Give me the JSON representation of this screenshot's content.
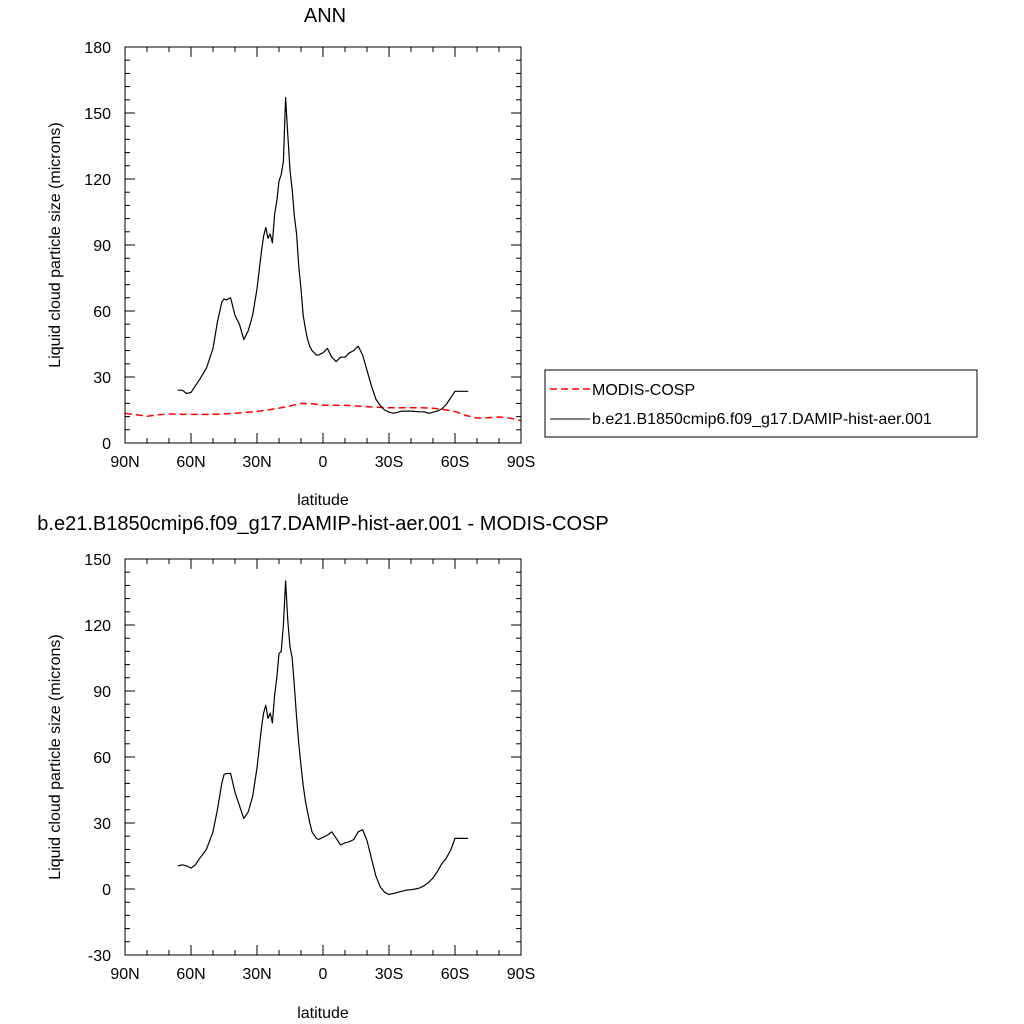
{
  "chart_data": [
    {
      "type": "line",
      "title": "ANN",
      "xlabel": "latitude",
      "ylabel": "Liquid cloud particle size (microns)",
      "xlim": [
        90,
        -90
      ],
      "ylim": [
        0,
        180
      ],
      "xticks": [
        {
          "value": 90,
          "label": "90N"
        },
        {
          "value": 60,
          "label": "60N"
        },
        {
          "value": 30,
          "label": "30N"
        },
        {
          "value": 0,
          "label": "0"
        },
        {
          "value": -30,
          "label": "30S"
        },
        {
          "value": -60,
          "label": "60S"
        },
        {
          "value": -90,
          "label": "90S"
        }
      ],
      "yticks": [
        0,
        30,
        60,
        90,
        120,
        150,
        180
      ],
      "grid": false,
      "legend": "right",
      "series": [
        {
          "name": "MODIS-COSP",
          "color": "#ff0000",
          "dash": true,
          "x": [
            90,
            85,
            80,
            75,
            70,
            60,
            50,
            40,
            30,
            20,
            15,
            10,
            5,
            0,
            -5,
            -10,
            -20,
            -30,
            -40,
            -45,
            -50,
            -55,
            -60,
            -65,
            -70,
            -75,
            -80,
            -85,
            -90
          ],
          "y": [
            13.5,
            12.8,
            12.2,
            12.8,
            13.2,
            13,
            13,
            13.5,
            14.3,
            15.8,
            16.8,
            18,
            17.8,
            17.2,
            17.2,
            17.2,
            16.5,
            16,
            16,
            16,
            15.8,
            15.2,
            14.3,
            12.5,
            11.3,
            11.5,
            11.8,
            11.3,
            10.2
          ]
        },
        {
          "name": "b.e21.B1850cmip6.f09_g17.DAMIP-hist-aer.001",
          "color": "#000000",
          "dash": false,
          "x": [
            66,
            64,
            62,
            60,
            58,
            56,
            53,
            50,
            48,
            46,
            45,
            44,
            42,
            40,
            38,
            36,
            34,
            32,
            30,
            28,
            27,
            26,
            25,
            24,
            23,
            22,
            21,
            20,
            19,
            18,
            17,
            16,
            15,
            14,
            13,
            12,
            11,
            10,
            9,
            8,
            7,
            6,
            5,
            4,
            3,
            2,
            0,
            -2,
            -4,
            -6,
            -8,
            -10,
            -12,
            -14,
            -16,
            -18,
            -20,
            -22,
            -24,
            -26,
            -28,
            -30,
            -32,
            -34,
            -36,
            -38,
            -40,
            -42,
            -44,
            -46,
            -48,
            -50,
            -52,
            -54,
            -56,
            -58,
            -60,
            -62,
            -64,
            -65,
            -66
          ],
          "y": [
            24,
            24,
            22.5,
            23,
            26,
            29,
            34,
            43,
            55,
            64,
            65.5,
            65,
            66,
            58,
            54,
            47,
            51,
            58,
            70,
            87,
            94,
            98,
            93,
            95,
            91,
            104,
            110,
            119,
            122,
            128,
            157,
            140,
            124,
            115,
            103,
            95,
            80,
            70,
            58,
            52,
            47,
            44,
            42,
            41,
            40,
            40,
            41,
            43,
            39,
            37,
            39,
            39,
            41,
            42,
            44,
            40,
            33,
            26,
            20,
            17,
            15,
            14,
            13.5,
            14,
            14.5,
            14.5,
            14.5,
            14.3,
            14.2,
            14.2,
            13.5,
            14,
            14.5,
            15.5,
            17.5,
            20.5,
            23.5,
            23.5,
            23.5,
            23.5,
            23.5
          ]
        }
      ]
    },
    {
      "type": "line",
      "title": "b.e21.B1850cmip6.f09_g17.DAMIP-hist-aer.001 - MODIS-COSP",
      "xlabel": "latitude",
      "ylabel": "Liquid cloud particle size (microns)",
      "xlim": [
        90,
        -90
      ],
      "ylim": [
        -30,
        150
      ],
      "xticks": [
        {
          "value": 90,
          "label": "90N"
        },
        {
          "value": 60,
          "label": "60N"
        },
        {
          "value": 30,
          "label": "30N"
        },
        {
          "value": 0,
          "label": "0"
        },
        {
          "value": -30,
          "label": "30S"
        },
        {
          "value": -60,
          "label": "60S"
        },
        {
          "value": -90,
          "label": "90S"
        }
      ],
      "yticks": [
        -30,
        0,
        30,
        60,
        90,
        120,
        150
      ],
      "grid": false,
      "series": [
        {
          "color": "#000000",
          "dash": false,
          "x": [
            66,
            64,
            62,
            60,
            58,
            56,
            53,
            50,
            48,
            46,
            45,
            44,
            42,
            40,
            38,
            36,
            34,
            32,
            30,
            28,
            27,
            26,
            25,
            24,
            23,
            22,
            21,
            20,
            19,
            18,
            17,
            16,
            15,
            14,
            13,
            12,
            11,
            10,
            9,
            8,
            7,
            6,
            5,
            4,
            3,
            2,
            0,
            -2,
            -4,
            -6,
            -8,
            -10,
            -12,
            -14,
            -16,
            -18,
            -20,
            -22,
            -24,
            -26,
            -28,
            -30,
            -32,
            -34,
            -36,
            -38,
            -40,
            -42,
            -44,
            -46,
            -48,
            -50,
            -52,
            -54,
            -56,
            -58,
            -60,
            -62,
            -64,
            -66
          ],
          "y": [
            10.5,
            11,
            10.5,
            9.5,
            11,
            14,
            18,
            26,
            36,
            48,
            52,
            52.5,
            52.5,
            44,
            38,
            32,
            35,
            42,
            55,
            73,
            80,
            83.5,
            77.5,
            80,
            75.5,
            88,
            96,
            107,
            108,
            120,
            140,
            122,
            110,
            105,
            92,
            78,
            66,
            56,
            47,
            40,
            35,
            30,
            26,
            24.5,
            23,
            22.5,
            23.5,
            24.5,
            26,
            23,
            20,
            21,
            21.5,
            22.5,
            26,
            27,
            22,
            14,
            6,
            1,
            -1.5,
            -2.5,
            -2,
            -1.5,
            -1,
            -0.5,
            -0.3,
            0,
            0.5,
            1.5,
            3,
            5,
            8,
            11.5,
            14,
            17.5,
            23,
            23,
            23,
            23
          ]
        }
      ]
    }
  ]
}
